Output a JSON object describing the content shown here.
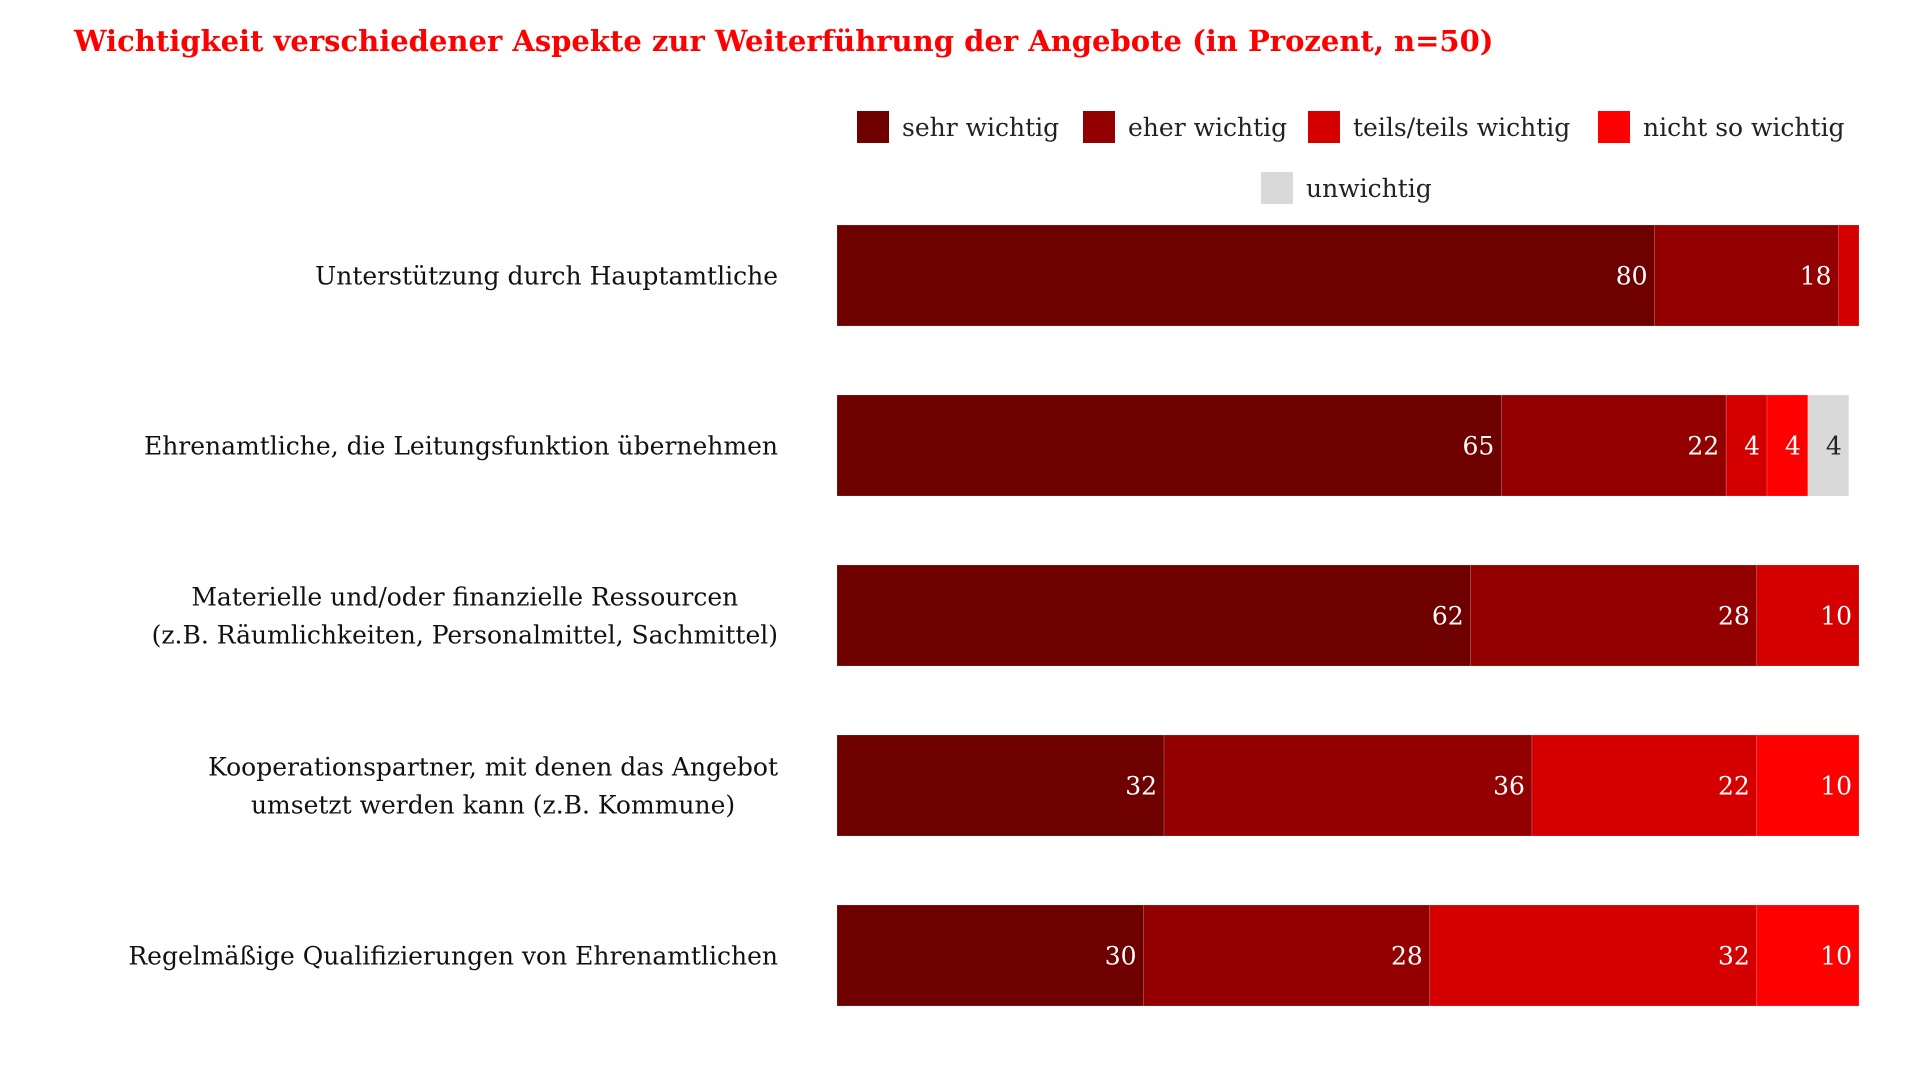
{
  "chart_data": {
    "type": "bar",
    "orientation": "horizontal",
    "stacked": true,
    "title": "Wichtigkeit verschiedener Aspekte zur Weiterführung der Angebote (in Prozent, n=50)",
    "categories": [
      [
        "Unterstützung durch Hauptamtliche"
      ],
      [
        "Ehrenamtliche, die Leitungsfunktion übernehmen"
      ],
      [
        "Materielle und/oder finanzielle Ressourcen",
        "(z.B. Räumlichkeiten, Personalmittel, Sachmittel)"
      ],
      [
        "Kooperationspartner, mit denen das Angebot",
        "umsetzt werden kann (z.B. Kommune)"
      ],
      [
        "Regelmäßige Qualifizierungen von Ehrenamtlichen"
      ]
    ],
    "series": [
      {
        "name": "sehr wichtig",
        "color": "#6e0000",
        "label_color": "#ffffff",
        "values": [
          80,
          65,
          62,
          32,
          30
        ]
      },
      {
        "name": "eher wichtig",
        "color": "#920000",
        "label_color": "#ffffff",
        "values": [
          18,
          22,
          28,
          36,
          28
        ]
      },
      {
        "name": "teils/teils wichtig",
        "color": "#d40000",
        "label_color": "#ffffff",
        "values": [
          2,
          4,
          10,
          22,
          32
        ]
      },
      {
        "name": "nicht so wichtig",
        "color": "#ff0000",
        "label_color": "#ffffff",
        "values": [
          0,
          4,
          0,
          10,
          10
        ]
      },
      {
        "name": "unwichtig",
        "color": "#d9d9d9",
        "label_color": "#222222",
        "values": [
          0,
          4,
          0,
          0,
          0
        ]
      }
    ],
    "value_labels": [
      [
        "80",
        "18",
        "",
        "",
        ""
      ],
      [
        "65",
        "22",
        "4",
        "4",
        "4"
      ],
      [
        "62",
        "28",
        "10",
        "",
        ""
      ],
      [
        "32",
        "36",
        "22",
        "10",
        ""
      ],
      [
        "30",
        "28",
        "32",
        "10",
        ""
      ]
    ],
    "xlim": [
      0,
      100
    ],
    "legend_position": "top-right",
    "grid": false
  }
}
